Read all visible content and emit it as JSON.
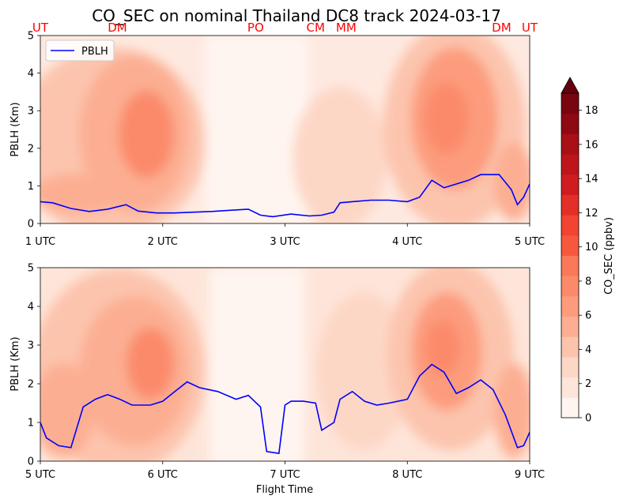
{
  "chart_data": {
    "title": "CO_SEC on nominal Thailand DC8 track 2024-03-17",
    "type": "contour",
    "top_markers": [
      {
        "label": "UT",
        "time": 1.0
      },
      {
        "label": "DM",
        "time": 1.63
      },
      {
        "label": "PO",
        "time": 2.76
      },
      {
        "label": "CM",
        "time": 3.25
      },
      {
        "label": "MM",
        "time": 3.5
      },
      {
        "label": "DM",
        "time": 4.77
      },
      {
        "label": "UT",
        "time": 5.0
      }
    ],
    "panels": [
      {
        "x_ticks": [
          "1 UTC",
          "2 UTC",
          "3 UTC",
          "4 UTC",
          "5 UTC"
        ],
        "xlim": [
          1,
          5
        ],
        "ylim": [
          0,
          5
        ],
        "y_ticks": [
          "0",
          "1",
          "2",
          "3",
          "4",
          "5"
        ],
        "ylabel": "PBLH (Km)",
        "xlabel": "",
        "legend": {
          "label": "PBLH",
          "location": "upper-left"
        },
        "series": [
          {
            "name": "PBLH",
            "color": "#0000ff",
            "x": [
              1.0,
              1.1,
              1.25,
              1.4,
              1.55,
              1.7,
              1.8,
              1.95,
              2.1,
              2.25,
              2.4,
              2.55,
              2.7,
              2.8,
              2.9,
              3.05,
              3.2,
              3.3,
              3.4,
              3.45,
              3.55,
              3.7,
              3.85,
              4.0,
              4.1,
              4.2,
              4.3,
              4.4,
              4.5,
              4.6,
              4.75,
              4.85,
              4.9,
              4.95,
              5.0
            ],
            "y": [
              0.58,
              0.55,
              0.4,
              0.32,
              0.38,
              0.5,
              0.33,
              0.28,
              0.28,
              0.3,
              0.32,
              0.35,
              0.38,
              0.22,
              0.18,
              0.25,
              0.2,
              0.22,
              0.3,
              0.55,
              0.58,
              0.62,
              0.62,
              0.58,
              0.7,
              1.15,
              0.95,
              1.05,
              1.15,
              1.3,
              1.3,
              0.9,
              0.5,
              0.7,
              1.05
            ]
          }
        ]
      },
      {
        "x_ticks": [
          "5 UTC",
          "6 UTC",
          "7 UTC",
          "8 UTC",
          "9 UTC"
        ],
        "xlim": [
          5,
          9
        ],
        "ylim": [
          0,
          5
        ],
        "y_ticks": [
          "0",
          "1",
          "2",
          "3",
          "4",
          "5"
        ],
        "ylabel": "PBLH (Km)",
        "xlabel": "Flight Time",
        "series": [
          {
            "name": "PBLH",
            "color": "#0000ff",
            "x": [
              5.0,
              5.05,
              5.15,
              5.25,
              5.35,
              5.45,
              5.55,
              5.65,
              5.75,
              5.9,
              6.0,
              6.1,
              6.2,
              6.3,
              6.45,
              6.6,
              6.7,
              6.8,
              6.85,
              6.95,
              7.0,
              7.05,
              7.15,
              7.25,
              7.3,
              7.4,
              7.45,
              7.55,
              7.65,
              7.75,
              7.85,
              8.0,
              8.1,
              8.2,
              8.3,
              8.4,
              8.5,
              8.6,
              8.7,
              8.8,
              8.9,
              8.95,
              9.0
            ],
            "y": [
              1.0,
              0.6,
              0.4,
              0.35,
              1.4,
              1.6,
              1.72,
              1.6,
              1.45,
              1.45,
              1.55,
              1.8,
              2.05,
              1.9,
              1.8,
              1.6,
              1.7,
              1.4,
              0.25,
              0.2,
              1.45,
              1.55,
              1.55,
              1.5,
              0.8,
              1.0,
              1.6,
              1.8,
              1.55,
              1.45,
              1.5,
              1.6,
              2.2,
              2.5,
              2.3,
              1.75,
              1.9,
              2.1,
              1.85,
              1.2,
              0.35,
              0.4,
              0.75
            ]
          }
        ]
      }
    ],
    "colorbar": {
      "label": "CO_SEC (ppbv)",
      "ticks": [
        "0",
        "2",
        "4",
        "6",
        "8",
        "10",
        "12",
        "14",
        "16",
        "18"
      ],
      "range": [
        0,
        19
      ],
      "extend": "max",
      "colors": [
        "#fff5f0",
        "#fee5d9",
        "#fdd7c6",
        "#fcc4ad",
        "#fcae92",
        "#fc9c7d",
        "#fb8a6a",
        "#fb7858",
        "#f6583e",
        "#f14432",
        "#e32f27",
        "#cf1c1f",
        "#bd151a",
        "#a81016",
        "#8f0912",
        "#780510",
        "#67000d"
      ]
    }
  }
}
